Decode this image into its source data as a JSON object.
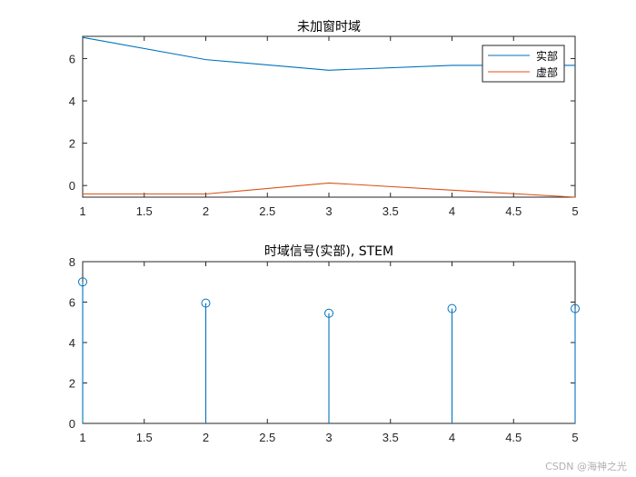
{
  "chart_data": [
    {
      "type": "line",
      "title": "未加窗时域",
      "x": [
        1,
        2,
        3,
        4,
        5
      ],
      "xlim": [
        1,
        5
      ],
      "ylim": [
        -0.55,
        7.05
      ],
      "xticks": [
        "1",
        "1.5",
        "2",
        "2.5",
        "3",
        "3.5",
        "4",
        "4.5",
        "5"
      ],
      "yticks": [
        "0",
        "2",
        "4",
        "6"
      ],
      "legend_position": "top-right",
      "series": [
        {
          "name": "实部",
          "color": "#0072BD",
          "values": [
            7.0,
            5.95,
            5.45,
            5.68,
            5.68
          ]
        },
        {
          "name": "虚部",
          "color": "#D95319",
          "values": [
            -0.4,
            -0.4,
            0.12,
            -0.22,
            -0.55
          ]
        }
      ]
    },
    {
      "type": "stem",
      "title": "时域信号(实部), STEM",
      "x": [
        1,
        2,
        3,
        4,
        5
      ],
      "values": [
        7.0,
        5.95,
        5.45,
        5.68,
        5.68
      ],
      "color": "#0072BD",
      "xlim": [
        1,
        5
      ],
      "ylim": [
        0,
        8
      ],
      "xticks": [
        "1",
        "1.5",
        "2",
        "2.5",
        "3",
        "3.5",
        "4",
        "4.5",
        "5"
      ],
      "yticks": [
        "0",
        "2",
        "4",
        "6",
        "8"
      ]
    }
  ],
  "watermark": "CSDN @海神之光"
}
